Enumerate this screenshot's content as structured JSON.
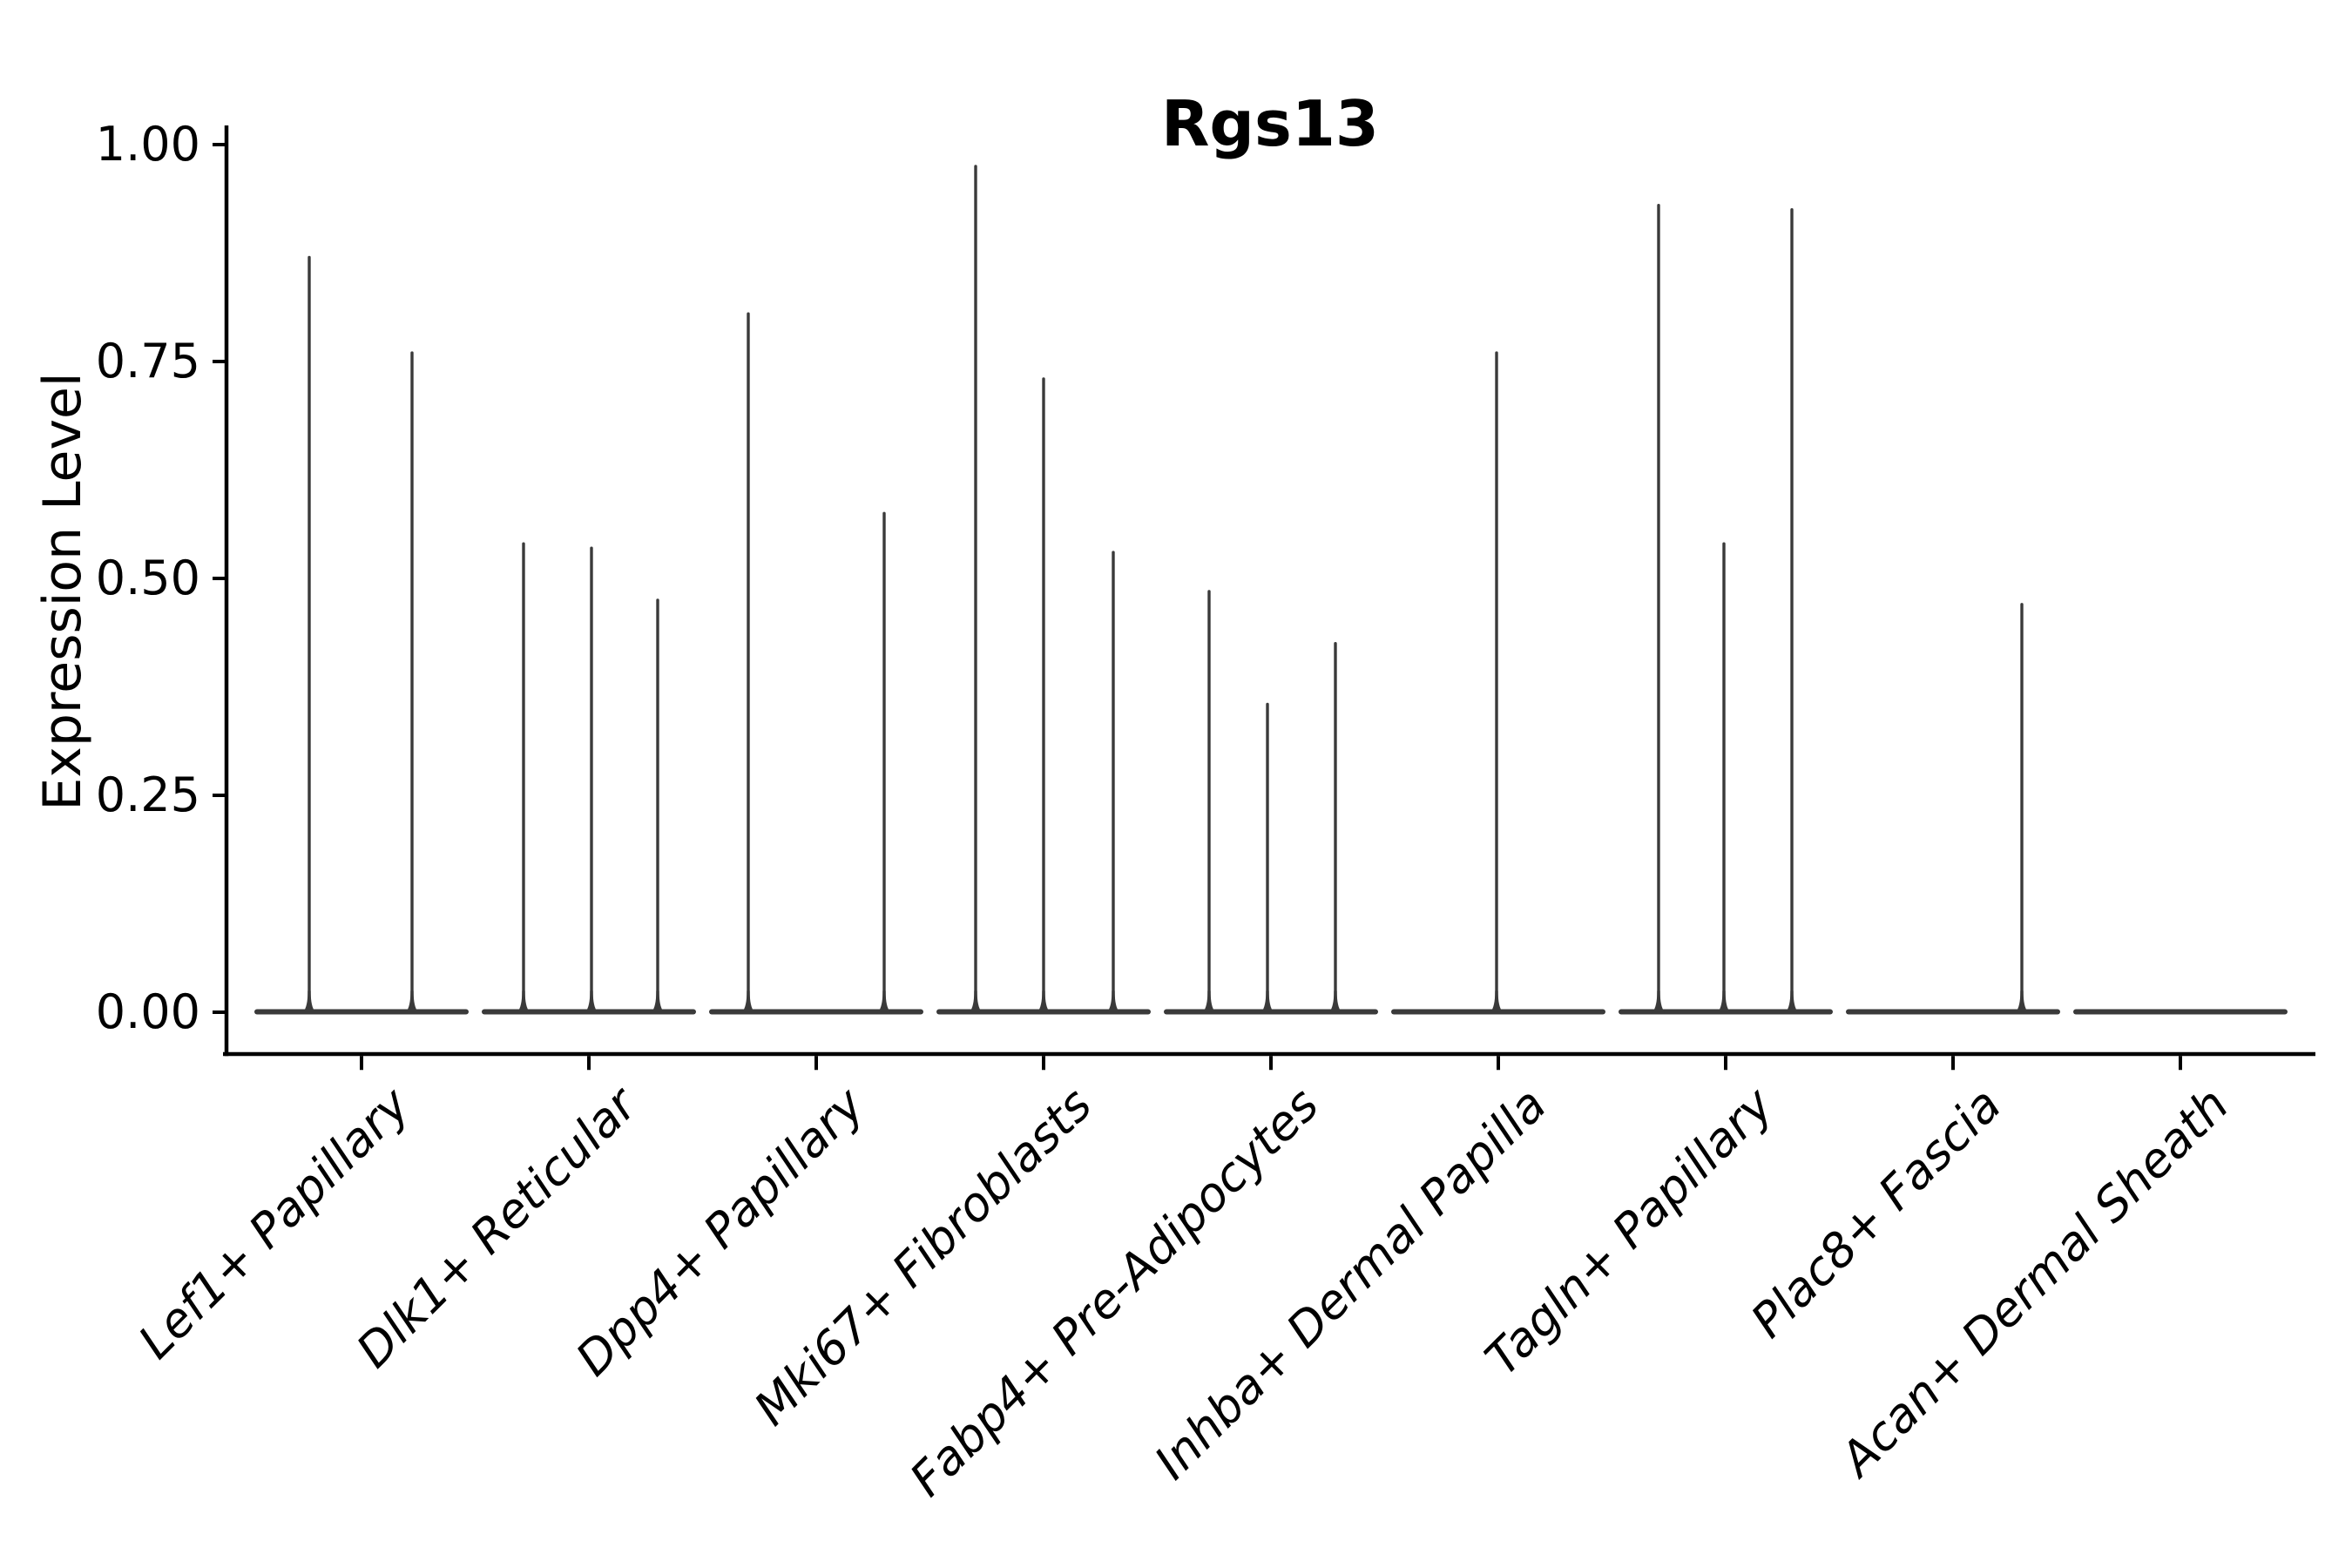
{
  "chart_data": {
    "type": "violin",
    "title": "Rgs13",
    "ylabel": "Expression Level",
    "ylim": [
      0,
      1
    ],
    "grid": false,
    "legend": "none",
    "yticks": [
      {
        "value": 0.0,
        "label": "0.00"
      },
      {
        "value": 0.25,
        "label": "0.25"
      },
      {
        "value": 0.5,
        "label": "0.50"
      },
      {
        "value": 0.75,
        "label": "0.75"
      },
      {
        "value": 1.0,
        "label": "1.00"
      }
    ],
    "categories": [
      {
        "label": "Lef1+ Papillary",
        "spikes": [
          {
            "offset": -60,
            "value": 0.87
          },
          {
            "offset": 58,
            "value": 0.76
          }
        ]
      },
      {
        "label": "Dlk1+ Reticular",
        "spikes": [
          {
            "offset": -75,
            "value": 0.54
          },
          {
            "offset": 3,
            "value": 0.535
          },
          {
            "offset": 79,
            "value": 0.475
          }
        ]
      },
      {
        "label": "Dpp4+ Papillary",
        "spikes": [
          {
            "offset": -78,
            "value": 0.805
          },
          {
            "offset": 78,
            "value": 0.575
          }
        ]
      },
      {
        "label": "Mki67+ Fibroblasts",
        "spikes": [
          {
            "offset": -78,
            "value": 0.975
          },
          {
            "offset": 0,
            "value": 0.73
          },
          {
            "offset": 80,
            "value": 0.53
          }
        ]
      },
      {
        "label": "Fabp4+ Pre-Adipocytes",
        "spikes": [
          {
            "offset": -71,
            "value": 0.485
          },
          {
            "offset": -4,
            "value": 0.355
          },
          {
            "offset": 74,
            "value": 0.425
          }
        ]
      },
      {
        "label": "Inhba+ Dermal Papilla",
        "spikes": [
          {
            "offset": -2,
            "value": 0.76
          }
        ]
      },
      {
        "label": "Tagln+ Papillary",
        "spikes": [
          {
            "offset": -77,
            "value": 0.93
          },
          {
            "offset": -2,
            "value": 0.54
          },
          {
            "offset": 76,
            "value": 0.925
          }
        ]
      },
      {
        "label": "Plac8+ Fascia",
        "spikes": [
          {
            "offset": 79,
            "value": 0.47
          }
        ]
      },
      {
        "label": "Acan+ Dermal Sheath",
        "spikes": []
      }
    ]
  },
  "style": {
    "violin_color": "#3A3A3A",
    "axis_color": "#000000",
    "text_color": "#000000",
    "background": "#FFFFFF"
  }
}
